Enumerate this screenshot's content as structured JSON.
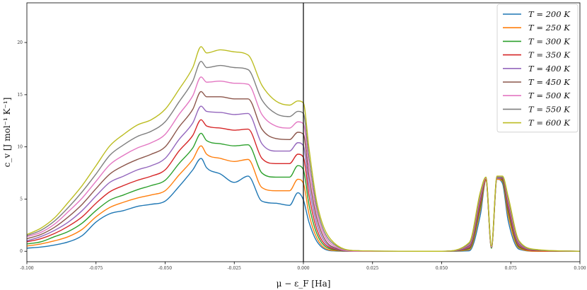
{
  "chart_data": {
    "type": "line",
    "title": "",
    "xlabel": "μ − ε_F  [Ha]",
    "ylabel": "c_v  [J mol⁻¹ K⁻¹]",
    "xlim": [
      -0.1,
      0.1
    ],
    "ylim": [
      -1.0,
      23.8
    ],
    "x_ticks": [
      "-0.100",
      "-0.075",
      "-0.050",
      "-0.025",
      "0.000",
      "0.025",
      "0.050",
      "0.075",
      "0.100"
    ],
    "y_ticks": [
      "0",
      "5",
      "10",
      "15",
      "20"
    ],
    "x_tick_values": [
      -0.1,
      -0.075,
      -0.05,
      -0.025,
      0.0,
      0.025,
      0.05,
      0.075,
      0.1
    ],
    "y_tick_values": [
      0,
      5,
      10,
      15,
      20
    ],
    "grid": false,
    "vertical_line_x": 0.0,
    "legend_position": "top-right",
    "series": [
      {
        "name": "T = 200 K",
        "color": "#1f77b4",
        "temperature": 200,
        "x": [
          -0.1,
          -0.095,
          -0.09,
          -0.085,
          -0.08,
          -0.075,
          -0.07,
          -0.065,
          -0.06,
          -0.055,
          -0.05,
          -0.045,
          -0.04,
          -0.037,
          -0.035,
          -0.03,
          -0.025,
          -0.02,
          -0.015,
          -0.01,
          -0.005,
          -0.002,
          0.0,
          0.002,
          0.005,
          0.01,
          0.02,
          0.05,
          0.06,
          0.064,
          0.066,
          0.068,
          0.07,
          0.072,
          0.074,
          0.078,
          0.085,
          0.1
        ],
        "y": [
          0.3,
          0.4,
          0.6,
          0.9,
          1.5,
          2.8,
          3.6,
          3.9,
          4.3,
          4.5,
          4.8,
          6.2,
          7.8,
          8.9,
          8.0,
          7.4,
          6.6,
          7.2,
          4.8,
          4.6,
          4.4,
          5.6,
          4.9,
          2.8,
          0.9,
          0.05,
          0.0,
          0.0,
          0.05,
          3.5,
          6.8,
          0.3,
          6.9,
          6.5,
          3.0,
          0.2,
          0.0,
          0.0
        ]
      },
      {
        "name": "T = 250 K",
        "color": "#ff7f0e",
        "temperature": 250,
        "x": [
          -0.1,
          -0.095,
          -0.09,
          -0.085,
          -0.08,
          -0.075,
          -0.07,
          -0.065,
          -0.06,
          -0.055,
          -0.05,
          -0.045,
          -0.04,
          -0.037,
          -0.035,
          -0.03,
          -0.025,
          -0.02,
          -0.015,
          -0.01,
          -0.005,
          -0.002,
          0.0,
          0.002,
          0.005,
          0.01,
          0.02,
          0.05,
          0.06,
          0.064,
          0.066,
          0.068,
          0.07,
          0.072,
          0.074,
          0.078,
          0.085,
          0.1
        ],
        "y": [
          0.5,
          0.7,
          1.0,
          1.4,
          2.1,
          3.3,
          4.2,
          4.7,
          5.1,
          5.4,
          5.8,
          7.3,
          8.8,
          10.1,
          9.3,
          8.9,
          8.6,
          8.8,
          6.1,
          5.8,
          5.8,
          6.9,
          6.5,
          3.6,
          1.2,
          0.1,
          0.0,
          0.0,
          0.15,
          4.0,
          6.8,
          0.3,
          6.9,
          6.7,
          3.5,
          0.3,
          0.0,
          0.0
        ]
      },
      {
        "name": "T = 300 K",
        "color": "#2ca02c",
        "temperature": 300,
        "x": [
          -0.1,
          -0.095,
          -0.09,
          -0.085,
          -0.08,
          -0.075,
          -0.07,
          -0.065,
          -0.06,
          -0.055,
          -0.05,
          -0.045,
          -0.04,
          -0.037,
          -0.035,
          -0.03,
          -0.025,
          -0.02,
          -0.015,
          -0.01,
          -0.005,
          -0.002,
          0.0,
          0.002,
          0.005,
          0.01,
          0.02,
          0.05,
          0.06,
          0.064,
          0.066,
          0.068,
          0.07,
          0.072,
          0.074,
          0.078,
          0.085,
          0.1
        ],
        "y": [
          0.7,
          0.9,
          1.4,
          1.9,
          2.7,
          3.9,
          4.9,
          5.4,
          5.9,
          6.3,
          6.8,
          8.4,
          9.9,
          11.3,
          10.6,
          10.3,
          10.1,
          10.2,
          7.5,
          7.1,
          7.1,
          8.2,
          7.8,
          4.5,
          1.6,
          0.2,
          0.0,
          0.0,
          0.25,
          4.3,
          6.9,
          0.3,
          7.0,
          6.8,
          3.9,
          0.4,
          0.05,
          0.0
        ]
      },
      {
        "name": "T = 350 K",
        "color": "#d62728",
        "temperature": 350,
        "x": [
          -0.1,
          -0.095,
          -0.09,
          -0.085,
          -0.08,
          -0.075,
          -0.07,
          -0.065,
          -0.06,
          -0.055,
          -0.05,
          -0.045,
          -0.04,
          -0.037,
          -0.035,
          -0.03,
          -0.025,
          -0.02,
          -0.015,
          -0.01,
          -0.005,
          -0.002,
          0.0,
          0.002,
          0.005,
          0.01,
          0.02,
          0.05,
          0.06,
          0.064,
          0.066,
          0.068,
          0.07,
          0.072,
          0.074,
          0.078,
          0.085,
          0.1
        ],
        "y": [
          0.9,
          1.2,
          1.7,
          2.4,
          3.3,
          4.6,
          5.7,
          6.3,
          6.8,
          7.2,
          7.8,
          9.6,
          11.1,
          12.6,
          12.0,
          11.8,
          11.6,
          11.7,
          8.9,
          8.4,
          8.4,
          9.3,
          9.0,
          5.4,
          2.0,
          0.3,
          0.0,
          0.0,
          0.35,
          4.6,
          6.9,
          0.4,
          7.0,
          6.9,
          4.2,
          0.5,
          0.05,
          0.0
        ]
      },
      {
        "name": "T = 400 K",
        "color": "#9467bd",
        "temperature": 400,
        "x": [
          -0.1,
          -0.095,
          -0.09,
          -0.085,
          -0.08,
          -0.075,
          -0.07,
          -0.065,
          -0.06,
          -0.055,
          -0.05,
          -0.045,
          -0.04,
          -0.037,
          -0.035,
          -0.03,
          -0.025,
          -0.02,
          -0.015,
          -0.01,
          -0.005,
          -0.002,
          0.0,
          0.002,
          0.005,
          0.01,
          0.02,
          0.05,
          0.06,
          0.064,
          0.066,
          0.068,
          0.07,
          0.072,
          0.074,
          0.078,
          0.085,
          0.1
        ],
        "y": [
          1.0,
          1.4,
          2.0,
          2.8,
          3.9,
          5.3,
          6.6,
          7.2,
          7.8,
          8.2,
          8.9,
          10.7,
          12.3,
          13.9,
          13.4,
          13.3,
          13.1,
          13.2,
          10.3,
          9.6,
          9.6,
          10.4,
          10.1,
          6.3,
          2.5,
          0.4,
          0.0,
          0.0,
          0.45,
          4.9,
          7.0,
          0.4,
          7.0,
          7.0,
          4.5,
          0.6,
          0.1,
          0.0
        ]
      },
      {
        "name": "T = 450 K",
        "color": "#8c564b",
        "temperature": 450,
        "x": [
          -0.1,
          -0.095,
          -0.09,
          -0.085,
          -0.08,
          -0.075,
          -0.07,
          -0.065,
          -0.06,
          -0.055,
          -0.05,
          -0.045,
          -0.04,
          -0.037,
          -0.035,
          -0.03,
          -0.025,
          -0.02,
          -0.015,
          -0.01,
          -0.005,
          -0.002,
          0.0,
          0.002,
          0.005,
          0.01,
          0.02,
          0.05,
          0.06,
          0.064,
          0.066,
          0.068,
          0.07,
          0.072,
          0.074,
          0.078,
          0.085,
          0.1
        ],
        "y": [
          1.2,
          1.6,
          2.3,
          3.3,
          4.5,
          6.0,
          7.4,
          8.2,
          8.8,
          9.3,
          10.0,
          11.9,
          13.6,
          15.3,
          14.8,
          14.8,
          14.6,
          14.6,
          11.7,
          10.8,
          10.7,
          11.4,
          11.2,
          7.2,
          3.0,
          0.5,
          0.0,
          0.0,
          0.55,
          5.1,
          7.0,
          0.4,
          7.1,
          7.0,
          4.7,
          0.7,
          0.1,
          0.0
        ]
      },
      {
        "name": "T = 500 K",
        "color": "#e377c2",
        "temperature": 500,
        "x": [
          -0.1,
          -0.095,
          -0.09,
          -0.085,
          -0.08,
          -0.075,
          -0.07,
          -0.065,
          -0.06,
          -0.055,
          -0.05,
          -0.045,
          -0.04,
          -0.037,
          -0.035,
          -0.03,
          -0.025,
          -0.02,
          -0.015,
          -0.01,
          -0.005,
          -0.002,
          0.0,
          0.002,
          0.005,
          0.01,
          0.02,
          0.05,
          0.06,
          0.064,
          0.066,
          0.068,
          0.07,
          0.072,
          0.074,
          0.078,
          0.085,
          0.1
        ],
        "y": [
          1.4,
          1.8,
          2.6,
          3.8,
          5.1,
          6.7,
          8.3,
          9.2,
          9.9,
          10.4,
          11.2,
          13.1,
          14.9,
          16.7,
          16.2,
          16.3,
          16.1,
          16.0,
          13.1,
          12.0,
          11.8,
          12.4,
          12.2,
          8.1,
          3.5,
          0.7,
          0.0,
          0.0,
          0.65,
          5.3,
          7.0,
          0.4,
          7.1,
          7.1,
          4.9,
          0.8,
          0.1,
          0.0
        ]
      },
      {
        "name": "T = 550 K",
        "color": "#7f7f7f",
        "temperature": 550,
        "x": [
          -0.1,
          -0.095,
          -0.09,
          -0.085,
          -0.08,
          -0.075,
          -0.07,
          -0.065,
          -0.06,
          -0.055,
          -0.05,
          -0.045,
          -0.04,
          -0.037,
          -0.035,
          -0.03,
          -0.025,
          -0.02,
          -0.015,
          -0.01,
          -0.005,
          -0.002,
          0.0,
          0.002,
          0.005,
          0.01,
          0.02,
          0.05,
          0.06,
          0.064,
          0.066,
          0.068,
          0.07,
          0.072,
          0.074,
          0.078,
          0.085,
          0.1
        ],
        "y": [
          1.5,
          2.0,
          2.9,
          4.2,
          5.7,
          7.4,
          9.2,
          10.2,
          11.0,
          11.5,
          12.4,
          14.3,
          16.3,
          18.2,
          17.6,
          17.8,
          17.6,
          17.4,
          14.5,
          13.2,
          12.9,
          13.4,
          13.2,
          9.0,
          4.0,
          0.9,
          0.05,
          0.0,
          0.75,
          5.5,
          7.1,
          0.5,
          7.1,
          7.1,
          5.1,
          0.9,
          0.1,
          0.0
        ]
      },
      {
        "name": "T = 600 K",
        "color": "#bcbd22",
        "temperature": 600,
        "x": [
          -0.1,
          -0.095,
          -0.09,
          -0.085,
          -0.08,
          -0.075,
          -0.07,
          -0.065,
          -0.06,
          -0.055,
          -0.05,
          -0.045,
          -0.04,
          -0.037,
          -0.035,
          -0.03,
          -0.025,
          -0.02,
          -0.015,
          -0.01,
          -0.005,
          -0.002,
          0.0,
          0.002,
          0.005,
          0.01,
          0.02,
          0.05,
          0.06,
          0.064,
          0.066,
          0.068,
          0.07,
          0.072,
          0.074,
          0.078,
          0.085,
          0.1
        ],
        "y": [
          1.6,
          2.2,
          3.2,
          4.7,
          6.3,
          8.2,
          10.1,
          11.2,
          12.1,
          12.6,
          13.6,
          15.5,
          17.6,
          19.6,
          19.0,
          19.3,
          19.1,
          18.8,
          15.9,
          14.4,
          14.0,
          14.4,
          14.2,
          9.9,
          4.5,
          1.1,
          0.05,
          0.0,
          0.85,
          5.7,
          7.1,
          0.5,
          7.2,
          7.2,
          5.3,
          1.0,
          0.15,
          0.0
        ]
      }
    ]
  }
}
